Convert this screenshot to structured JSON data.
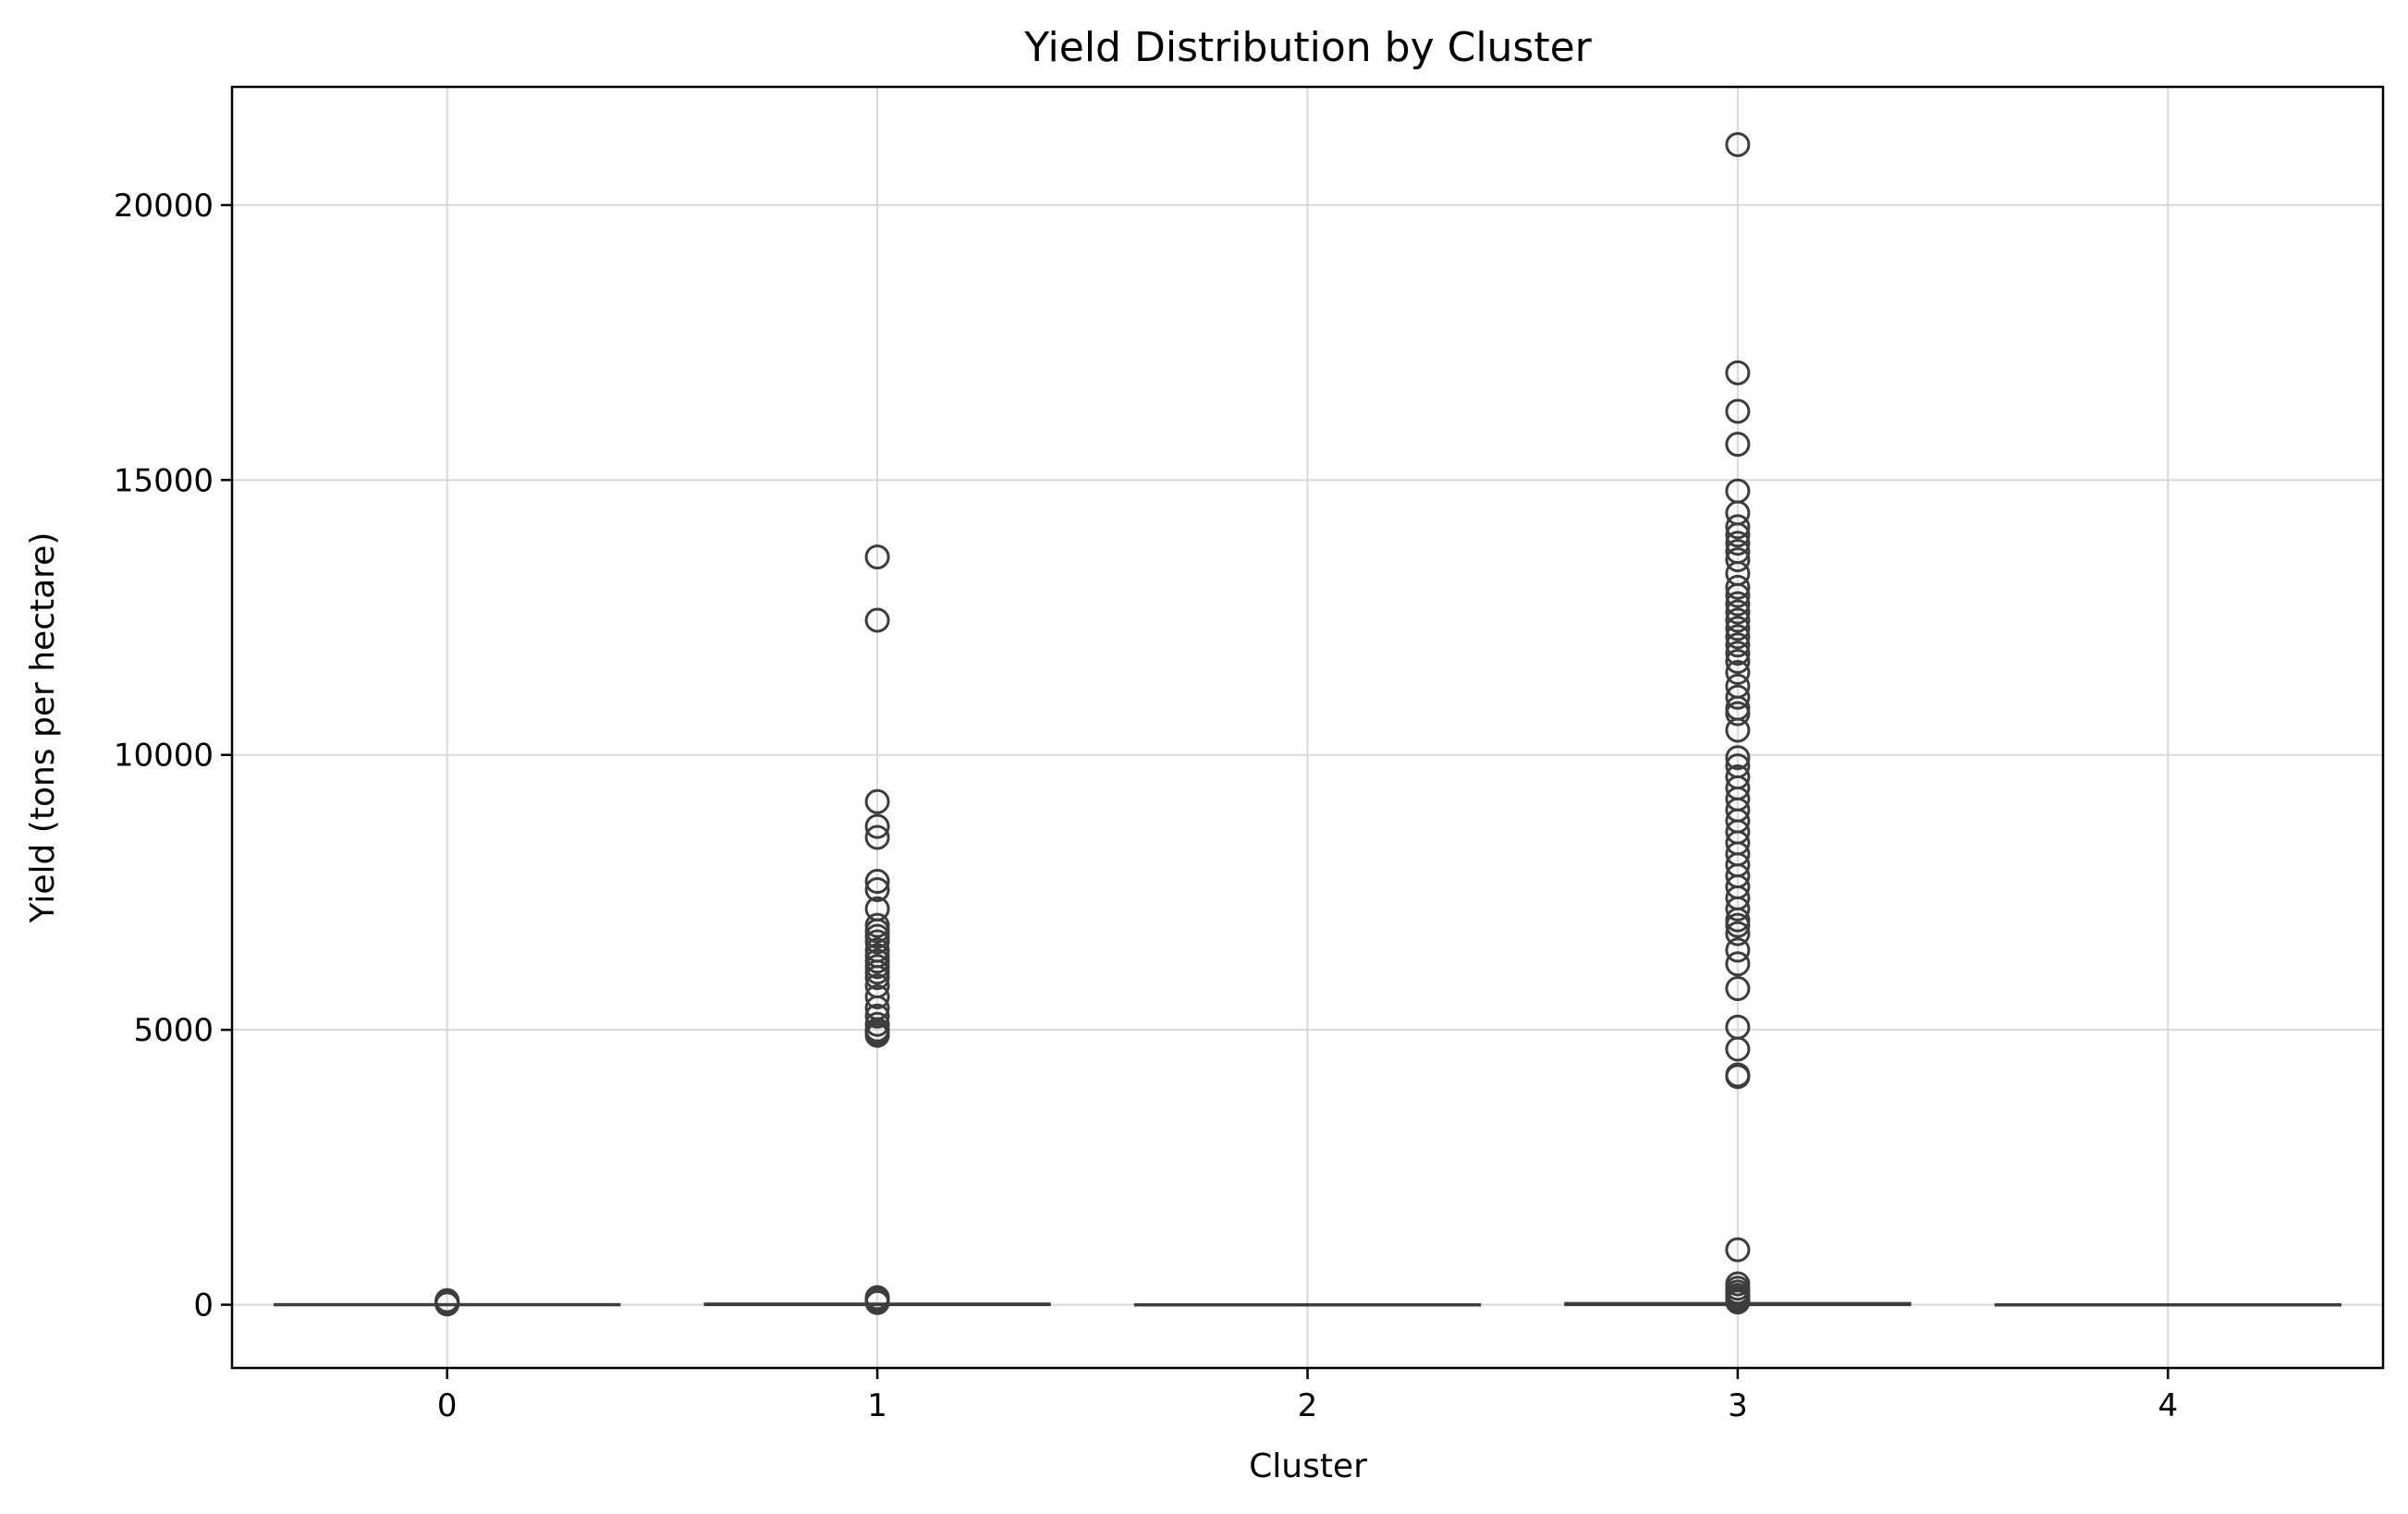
{
  "chart_data": {
    "type": "box",
    "title": "Yield Distribution by Cluster",
    "xlabel": "Cluster",
    "ylabel": "Yield (tons per hectare)",
    "categories": [
      "0",
      "1",
      "2",
      "3",
      "4"
    ],
    "ylim": [
      -1150,
      22150
    ],
    "yticks": [
      0,
      5000,
      10000,
      15000,
      20000
    ],
    "grid": true,
    "boxes": [
      {
        "cluster": "0",
        "q1": 0,
        "median": 2,
        "q3": 5,
        "whisker_low": 0,
        "whisker_high": 10,
        "outliers": [
          15,
          25,
          35,
          50,
          60,
          75
        ]
      },
      {
        "cluster": "1",
        "q1": 0,
        "median": 5,
        "q3": 15,
        "whisker_low": 0,
        "whisker_high": 30,
        "outliers": [
          40,
          70,
          100,
          130,
          4900,
          4950,
          5000,
          5100,
          5250,
          5400,
          5600,
          5800,
          5950,
          6050,
          6150,
          6250,
          6350,
          6450,
          6600,
          6700,
          6800,
          6900,
          7200,
          7550,
          7700,
          8500,
          8700,
          9150,
          12450,
          13600
        ]
      },
      {
        "cluster": "2",
        "q1": 0,
        "median": 1,
        "q3": 2,
        "whisker_low": 0,
        "whisker_high": 4,
        "outliers": []
      },
      {
        "cluster": "3",
        "q1": 0,
        "median": 10,
        "q3": 25,
        "whisker_low": 0,
        "whisker_high": 40,
        "outliers": [
          50,
          80,
          120,
          170,
          230,
          300,
          380,
          1000,
          4150,
          4180,
          4650,
          5050,
          5750,
          6200,
          6450,
          6750,
          6900,
          7000,
          7200,
          7400,
          7600,
          7800,
          8000,
          8200,
          8400,
          8600,
          8800,
          9000,
          9200,
          9400,
          9600,
          9800,
          9950,
          10450,
          10750,
          10850,
          11050,
          11250,
          11500,
          11700,
          11850,
          12000,
          12150,
          12300,
          12450,
          12600,
          12750,
          12900,
          13050,
          13300,
          13550,
          13700,
          13850,
          14000,
          14150,
          14400,
          14800,
          15650,
          16250,
          16950,
          21100
        ]
      },
      {
        "cluster": "4",
        "q1": 0,
        "median": 1,
        "q3": 2,
        "whisker_low": 0,
        "whisker_high": 3,
        "outliers": []
      }
    ]
  }
}
